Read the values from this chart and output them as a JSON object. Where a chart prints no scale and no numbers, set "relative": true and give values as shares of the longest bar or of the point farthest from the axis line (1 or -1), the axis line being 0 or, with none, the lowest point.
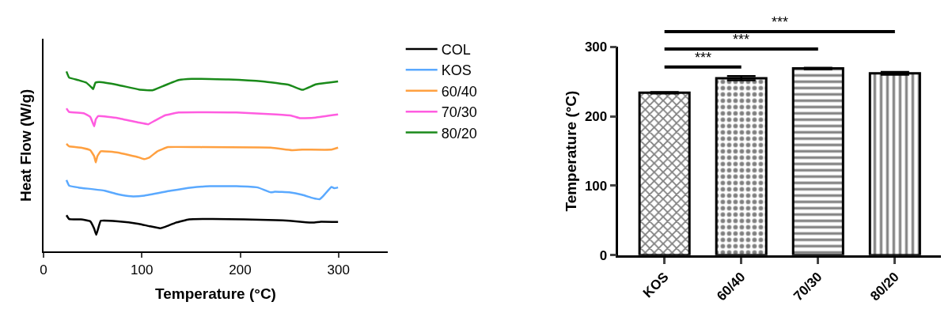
{
  "chart_data": [
    {
      "type": "line",
      "relative": true,
      "xlabel": "Temperature (°C)",
      "ylabel": "Heat Flow (W/g)",
      "xlim": [
        0,
        350
      ],
      "xticks": [
        0,
        100,
        200,
        300
      ],
      "tick_labels": "x",
      "legend": "right",
      "marker": "none",
      "line_style": "solid",
      "series": [
        {
          "name": "COL",
          "color": "#000000",
          "x": [
            23.3,
            26,
            38,
            47.5,
            51.5,
            53.6,
            55.5,
            58.2,
            75.6,
            97,
            107.8,
            118.5,
            123.9,
            134.6,
            148,
            172,
            204,
            236.5,
            250,
            263,
            274,
            282,
            299.5
          ],
          "values": [
            0.202,
            0.181,
            0.179,
            0.168,
            0.127,
            0.093,
            0.127,
            0.171,
            0.168,
            0.154,
            0.141,
            0.13,
            0.138,
            0.161,
            0.179,
            0.181,
            0.179,
            0.175,
            0.171,
            0.165,
            0.161,
            0.166,
            0.165
          ]
        },
        {
          "name": "KOS",
          "color": "#5aa9ff",
          "x": [
            23.3,
            26,
            35.4,
            62.2,
            75.6,
            89,
            102.6,
            129.2,
            150.7,
            169.4,
            196.2,
            217.7,
            231.1,
            235.1,
            249.9,
            263.3,
            274,
            280.8,
            284.8,
            292.8,
            295.5,
            299.5
          ],
          "values": [
            0.397,
            0.366,
            0.356,
            0.338,
            0.318,
            0.307,
            0.311,
            0.338,
            0.356,
            0.363,
            0.363,
            0.356,
            0.329,
            0.332,
            0.329,
            0.315,
            0.297,
            0.291,
            0.311,
            0.359,
            0.352,
            0.356
          ]
        },
        {
          "name": "60/40",
          "color": "#ffa040",
          "x": [
            23.3,
            26,
            38,
            47.5,
            51.5,
            53.1,
            54.7,
            58.2,
            75.6,
            97,
            102.6,
            107.8,
            115.8,
            126.5,
            156,
            231.1,
            252.5,
            263.3,
            292.8,
            299.5
          ],
          "values": [
            0.598,
            0.584,
            0.577,
            0.563,
            0.529,
            0.495,
            0.529,
            0.557,
            0.55,
            0.523,
            0.513,
            0.523,
            0.557,
            0.58,
            0.58,
            0.577,
            0.563,
            0.566,
            0.566,
            0.577
          ]
        },
        {
          "name": "70/30",
          "color": "#ff5ce0",
          "x": [
            23.3,
            26,
            40.8,
            47.5,
            50.1,
            51.5,
            53.1,
            55.5,
            75.6,
            97,
            106.5,
            113.2,
            123.9,
            137.3,
            196.2,
            236.5,
            252.5,
            260.6,
            265.9,
            276.7,
            299.5
          ],
          "values": [
            0.795,
            0.775,
            0.768,
            0.748,
            0.714,
            0.696,
            0.734,
            0.752,
            0.741,
            0.716,
            0.707,
            0.727,
            0.757,
            0.772,
            0.772,
            0.761,
            0.754,
            0.741,
            0.741,
            0.744,
            0.761
          ]
        },
        {
          "name": "80/20",
          "color": "#1a8a1a",
          "x": [
            23.3,
            26,
            35.4,
            43.4,
            48.8,
            50.4,
            52.8,
            56.8,
            75.6,
            97,
            110.5,
            121.2,
            137.3,
            150.7,
            188.2,
            223,
            249.9,
            263.3,
            276.7,
            290.1,
            299.5
          ],
          "values": [
            1.0,
            0.966,
            0.952,
            0.938,
            0.911,
            0.902,
            0.938,
            0.941,
            0.925,
            0.9,
            0.895,
            0.918,
            0.952,
            0.959,
            0.956,
            0.945,
            0.925,
            0.898,
            0.928,
            0.938,
            0.945
          ]
        }
      ]
    },
    {
      "type": "bar",
      "ylabel": "Temperature (°C)",
      "categories": [
        "KOS",
        "60/40",
        "70/30",
        "80/20"
      ],
      "values": [
        234,
        255,
        269,
        262
      ],
      "errors": [
        1,
        3,
        1,
        2
      ],
      "color": "#000000",
      "ylim": [
        0,
        300
      ],
      "yticks": [
        0,
        100,
        200,
        300
      ],
      "legend": false,
      "annotations": [
        "***",
        "***",
        "***"
      ]
    }
  ]
}
